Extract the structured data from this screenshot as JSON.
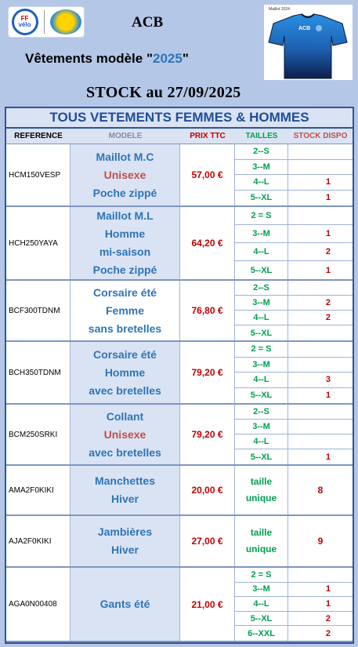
{
  "header": {
    "logo_ffv_top": "FF",
    "logo_ffv_bottom": "vélo",
    "club_logo_text": "",
    "title": "ACB",
    "subtitle_prefix": "Vêtements modèle \"",
    "subtitle_year": "2025",
    "subtitle_suffix": "\"",
    "stock_title": "STOCK au 27/09/2025",
    "jersey_caption": "Maillot 2024",
    "jersey_text": "ACB"
  },
  "colors": {
    "page_bg": "#b4c7e7",
    "header_blue": "#1f4e99",
    "price_red": "#c00000",
    "size_green": "#00a050",
    "model_blue": "#2e75b6",
    "model_red": "#c0504d"
  },
  "table": {
    "title": "TOUS VETEMENTS FEMMES & HOMMES",
    "columns": {
      "reference": "REFERENCE",
      "modele": "MODELE",
      "prix": "PRIX TTC",
      "tailles": "TAILLES",
      "stock": "STOCK DISPO"
    },
    "products": [
      {
        "reference": "HCM150VESP",
        "model_lines": [
          "Maillot M.C",
          "Unisexe",
          "Poche zippé"
        ],
        "price": "57,00 €",
        "sizes": [
          {
            "size": "2--S",
            "qty": ""
          },
          {
            "size": "3--M",
            "qty": ""
          },
          {
            "size": "4--L",
            "qty": "1"
          },
          {
            "size": "5--XL",
            "qty": "1"
          }
        ]
      },
      {
        "reference": "HCH250YAYA",
        "model_lines": [
          "Maillot M.L",
          "Homme",
          "mi-saison",
          "Poche zippé"
        ],
        "price": "64,20 €",
        "sizes": [
          {
            "size": "2 = S",
            "qty": ""
          },
          {
            "size": "3--M",
            "qty": "1"
          },
          {
            "size": "4--L",
            "qty": "2"
          },
          {
            "size": "5--XL",
            "qty": "1"
          }
        ]
      },
      {
        "reference": "BCF300TDNM",
        "model_lines": [
          "Corsaire été",
          "Femme",
          "sans bretelles"
        ],
        "price": "76,80 €",
        "sizes": [
          {
            "size": "2--S",
            "qty": ""
          },
          {
            "size": "3--M",
            "qty": "2"
          },
          {
            "size": "4--L",
            "qty": "2"
          },
          {
            "size": "5--XL",
            "qty": ""
          }
        ]
      },
      {
        "reference": "BCH350TDNM",
        "model_lines": [
          "Corsaire été",
          "Homme",
          "avec bretelles"
        ],
        "price": "79,20 €",
        "sizes": [
          {
            "size": "2 = S",
            "qty": ""
          },
          {
            "size": "3--M",
            "qty": ""
          },
          {
            "size": "4--L",
            "qty": "3"
          },
          {
            "size": "5--XL",
            "qty": "1"
          }
        ]
      },
      {
        "reference": "BCM250SRKI",
        "model_lines": [
          "Collant",
          "Unisexe",
          "avec bretelles"
        ],
        "price": "79,20 €",
        "sizes": [
          {
            "size": "2--S",
            "qty": ""
          },
          {
            "size": "3--M",
            "qty": ""
          },
          {
            "size": "4--L",
            "qty": ""
          },
          {
            "size": "5--XL",
            "qty": "1"
          }
        ]
      },
      {
        "reference": "AMA2F0KIKI",
        "model_lines": [
          "Manchettes",
          "Hiver"
        ],
        "price": "20,00 €",
        "unique": {
          "line1": "taille",
          "line2": "unique",
          "qty": "8"
        }
      },
      {
        "reference": "AJA2F0KIKI",
        "model_lines": [
          "Jambières",
          "Hiver"
        ],
        "price": "27,00 €",
        "unique": {
          "line1": "taille",
          "line2": "unique",
          "qty": "9"
        }
      },
      {
        "reference": "AGA0N00408",
        "model_lines": [
          "Gants été"
        ],
        "price": "21,00 €",
        "sizes": [
          {
            "size": "2 = S",
            "qty": ""
          },
          {
            "size": "3--M",
            "qty": "1"
          },
          {
            "size": "4--L",
            "qty": "1"
          },
          {
            "size": "5--XL",
            "qty": "2"
          },
          {
            "size": "6--XXL",
            "qty": "2"
          }
        ]
      }
    ]
  }
}
